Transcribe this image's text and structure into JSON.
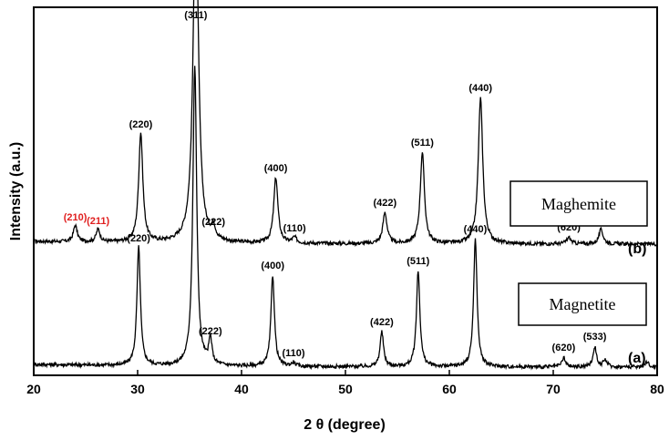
{
  "chart_data": {
    "type": "line",
    "xlabel": "2 θ (degree)",
    "ylabel": "Intensity (a.u.)",
    "xlim": [
      20,
      80
    ],
    "xticks": [
      "20",
      "30",
      "40",
      "50",
      "60",
      "70",
      "80"
    ],
    "yticks": [],
    "grid": false,
    "series": [
      {
        "name": "Maghemite",
        "curve_label": "(b)",
        "baseline": 1.4,
        "peaks": [
          {
            "x": 24.0,
            "h": 0.18,
            "w": 0.22,
            "label": "(210)",
            "color": "#e02020"
          },
          {
            "x": 26.2,
            "h": 0.14,
            "w": 0.22,
            "label": "(211)",
            "color": "#e02020"
          },
          {
            "x": 30.3,
            "h": 1.2,
            "w": 0.24,
            "label": "(220)",
            "color": "#000000"
          },
          {
            "x": 35.6,
            "h": 3.85,
            "w": 0.3,
            "label": "(311)",
            "color": "#000000"
          },
          {
            "x": 37.3,
            "h": 0.13,
            "w": 0.22,
            "label": "(222)",
            "color": "#000000"
          },
          {
            "x": 43.3,
            "h": 0.72,
            "w": 0.24,
            "label": "(400)",
            "color": "#000000"
          },
          {
            "x": 45.1,
            "h": 0.06,
            "w": 0.25,
            "label": "(110)",
            "color": "#000000"
          },
          {
            "x": 53.8,
            "h": 0.34,
            "w": 0.24,
            "label": "(422)",
            "color": "#000000"
          },
          {
            "x": 57.4,
            "h": 1.0,
            "w": 0.24,
            "label": "(511)",
            "color": "#000000"
          },
          {
            "x": 63.0,
            "h": 1.6,
            "w": 0.26,
            "label": "(440)",
            "color": "#000000"
          },
          {
            "x": 71.5,
            "h": 0.07,
            "w": 0.25,
            "label": "(620)",
            "color": "#000000"
          },
          {
            "x": 74.6,
            "h": 0.16,
            "w": 0.24,
            "label": "(533)",
            "color": "#000000"
          }
        ]
      },
      {
        "name": "Magnetite",
        "curve_label": "(a)",
        "baseline": 0.05,
        "peaks": [
          {
            "x": 30.1,
            "h": 1.3,
            "w": 0.2,
            "label": "(220)",
            "color": "#000000"
          },
          {
            "x": 35.5,
            "h": 3.3,
            "w": 0.22,
            "label": "",
            "color": "#000000"
          },
          {
            "x": 37.0,
            "h": 0.28,
            "w": 0.18,
            "label": "(222)",
            "color": "#000000"
          },
          {
            "x": 43.0,
            "h": 1.0,
            "w": 0.2,
            "label": "(400)",
            "color": "#000000"
          },
          {
            "x": 45.0,
            "h": 0.04,
            "w": 0.2,
            "label": "(110)",
            "color": "#000000"
          },
          {
            "x": 53.5,
            "h": 0.38,
            "w": 0.2,
            "label": "(422)",
            "color": "#000000"
          },
          {
            "x": 57.0,
            "h": 1.05,
            "w": 0.2,
            "label": "(511)",
            "color": "#000000"
          },
          {
            "x": 62.5,
            "h": 1.4,
            "w": 0.2,
            "label": "(440)",
            "color": "#000000"
          },
          {
            "x": 71.0,
            "h": 0.1,
            "w": 0.2,
            "label": "(620)",
            "color": "#000000"
          },
          {
            "x": 74.0,
            "h": 0.22,
            "w": 0.2,
            "label": "(533)",
            "color": "#000000"
          },
          {
            "x": 75.0,
            "h": 0.08,
            "w": 0.2,
            "label": "",
            "color": "#000000"
          },
          {
            "x": 79.0,
            "h": 0.06,
            "w": 0.2,
            "label": "",
            "color": "#000000"
          }
        ]
      }
    ],
    "annotations": {
      "maghemite_box": "Maghemite",
      "magnetite_box": "Magnetite"
    }
  }
}
